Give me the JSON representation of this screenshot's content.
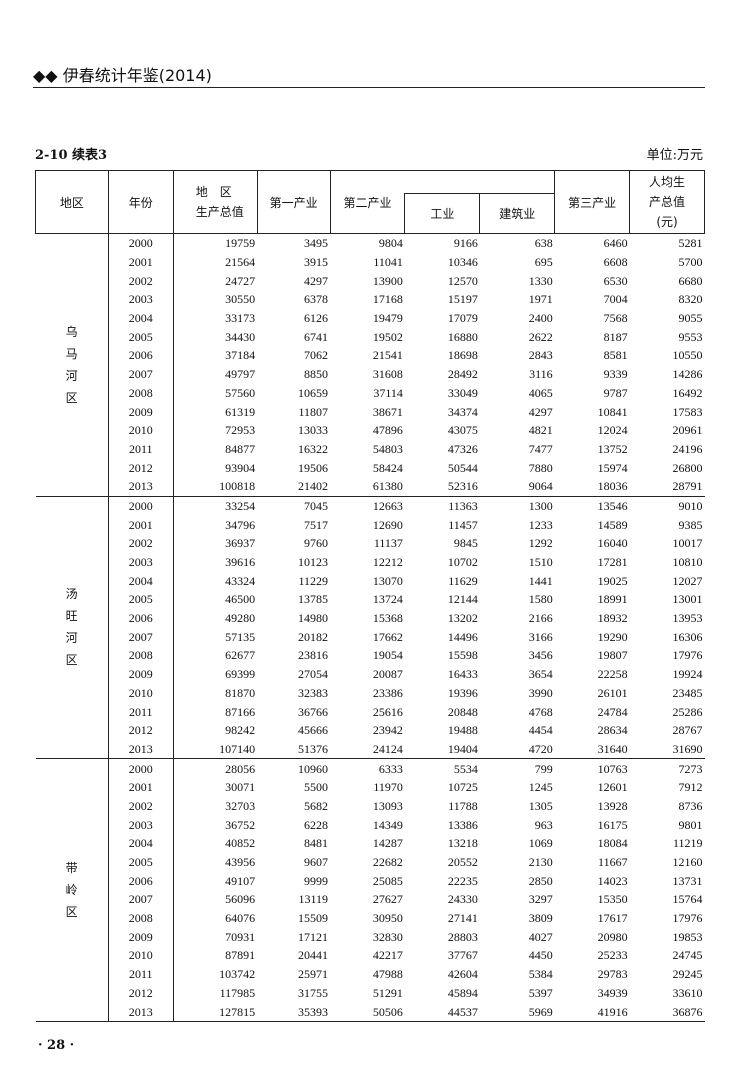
{
  "running_head": "◆◆ 伊春统计年鉴(2014)",
  "table_label": "2-10  续表3",
  "unit": "单位:万元",
  "columns": {
    "region": "地区",
    "year": "年份",
    "gdp": "地　区\n生产总值",
    "primary": "第一产业",
    "secondary": "第二产业",
    "industry": "工业",
    "construction": "建筑业",
    "tertiary": "第三产业",
    "per_capita": "人均生\n产总值\n(元)"
  },
  "blocks": [
    {
      "region": "乌马河区",
      "rows": [
        [
          "2000",
          "19759",
          "3495",
          "9804",
          "9166",
          "638",
          "6460",
          "5281"
        ],
        [
          "2001",
          "21564",
          "3915",
          "11041",
          "10346",
          "695",
          "6608",
          "5700"
        ],
        [
          "2002",
          "24727",
          "4297",
          "13900",
          "12570",
          "1330",
          "6530",
          "6680"
        ],
        [
          "2003",
          "30550",
          "6378",
          "17168",
          "15197",
          "1971",
          "7004",
          "8320"
        ],
        [
          "2004",
          "33173",
          "6126",
          "19479",
          "17079",
          "2400",
          "7568",
          "9055"
        ],
        [
          "2005",
          "34430",
          "6741",
          "19502",
          "16880",
          "2622",
          "8187",
          "9553"
        ],
        [
          "2006",
          "37184",
          "7062",
          "21541",
          "18698",
          "2843",
          "8581",
          "10550"
        ],
        [
          "2007",
          "49797",
          "8850",
          "31608",
          "28492",
          "3116",
          "9339",
          "14286"
        ],
        [
          "2008",
          "57560",
          "10659",
          "37114",
          "33049",
          "4065",
          "9787",
          "16492"
        ],
        [
          "2009",
          "61319",
          "11807",
          "38671",
          "34374",
          "4297",
          "10841",
          "17583"
        ],
        [
          "2010",
          "72953",
          "13033",
          "47896",
          "43075",
          "4821",
          "12024",
          "20961"
        ],
        [
          "2011",
          "84877",
          "16322",
          "54803",
          "47326",
          "7477",
          "13752",
          "24196"
        ],
        [
          "2012",
          "93904",
          "19506",
          "58424",
          "50544",
          "7880",
          "15974",
          "26800"
        ],
        [
          "2013",
          "100818",
          "21402",
          "61380",
          "52316",
          "9064",
          "18036",
          "28791"
        ]
      ]
    },
    {
      "region": "汤旺河区",
      "rows": [
        [
          "2000",
          "33254",
          "7045",
          "12663",
          "11363",
          "1300",
          "13546",
          "9010"
        ],
        [
          "2001",
          "34796",
          "7517",
          "12690",
          "11457",
          "1233",
          "14589",
          "9385"
        ],
        [
          "2002",
          "36937",
          "9760",
          "11137",
          "9845",
          "1292",
          "16040",
          "10017"
        ],
        [
          "2003",
          "39616",
          "10123",
          "12212",
          "10702",
          "1510",
          "17281",
          "10810"
        ],
        [
          "2004",
          "43324",
          "11229",
          "13070",
          "11629",
          "1441",
          "19025",
          "12027"
        ],
        [
          "2005",
          "46500",
          "13785",
          "13724",
          "12144",
          "1580",
          "18991",
          "13001"
        ],
        [
          "2006",
          "49280",
          "14980",
          "15368",
          "13202",
          "2166",
          "18932",
          "13953"
        ],
        [
          "2007",
          "57135",
          "20182",
          "17662",
          "14496",
          "3166",
          "19290",
          "16306"
        ],
        [
          "2008",
          "62677",
          "23816",
          "19054",
          "15598",
          "3456",
          "19807",
          "17976"
        ],
        [
          "2009",
          "69399",
          "27054",
          "20087",
          "16433",
          "3654",
          "22258",
          "19924"
        ],
        [
          "2010",
          "81870",
          "32383",
          "23386",
          "19396",
          "3990",
          "26101",
          "23485"
        ],
        [
          "2011",
          "87166",
          "36766",
          "25616",
          "20848",
          "4768",
          "24784",
          "25286"
        ],
        [
          "2012",
          "98242",
          "45666",
          "23942",
          "19488",
          "4454",
          "28634",
          "28767"
        ],
        [
          "2013",
          "107140",
          "51376",
          "24124",
          "19404",
          "4720",
          "31640",
          "31690"
        ]
      ]
    },
    {
      "region": "带岭区",
      "rows": [
        [
          "2000",
          "28056",
          "10960",
          "6333",
          "5534",
          "799",
          "10763",
          "7273"
        ],
        [
          "2001",
          "30071",
          "5500",
          "11970",
          "10725",
          "1245",
          "12601",
          "7912"
        ],
        [
          "2002",
          "32703",
          "5682",
          "13093",
          "11788",
          "1305",
          "13928",
          "8736"
        ],
        [
          "2003",
          "36752",
          "6228",
          "14349",
          "13386",
          "963",
          "16175",
          "9801"
        ],
        [
          "2004",
          "40852",
          "8481",
          "14287",
          "13218",
          "1069",
          "18084",
          "11219"
        ],
        [
          "2005",
          "43956",
          "9607",
          "22682",
          "20552",
          "2130",
          "11667",
          "12160"
        ],
        [
          "2006",
          "49107",
          "9999",
          "25085",
          "22235",
          "2850",
          "14023",
          "13731"
        ],
        [
          "2007",
          "56096",
          "13119",
          "27627",
          "24330",
          "3297",
          "15350",
          "15764"
        ],
        [
          "2008",
          "64076",
          "15509",
          "30950",
          "27141",
          "3809",
          "17617",
          "17976"
        ],
        [
          "2009",
          "70931",
          "17121",
          "32830",
          "28803",
          "4027",
          "20980",
          "19853"
        ],
        [
          "2010",
          "87891",
          "20441",
          "42217",
          "37767",
          "4450",
          "25233",
          "24745"
        ],
        [
          "2011",
          "103742",
          "25971",
          "47988",
          "42604",
          "5384",
          "29783",
          "29245"
        ],
        [
          "2012",
          "117985",
          "31755",
          "51291",
          "45894",
          "5397",
          "34939",
          "33610"
        ],
        [
          "2013",
          "127815",
          "35393",
          "50506",
          "44537",
          "5969",
          "41916",
          "36876"
        ]
      ]
    }
  ],
  "page_number": "· 28 ·"
}
